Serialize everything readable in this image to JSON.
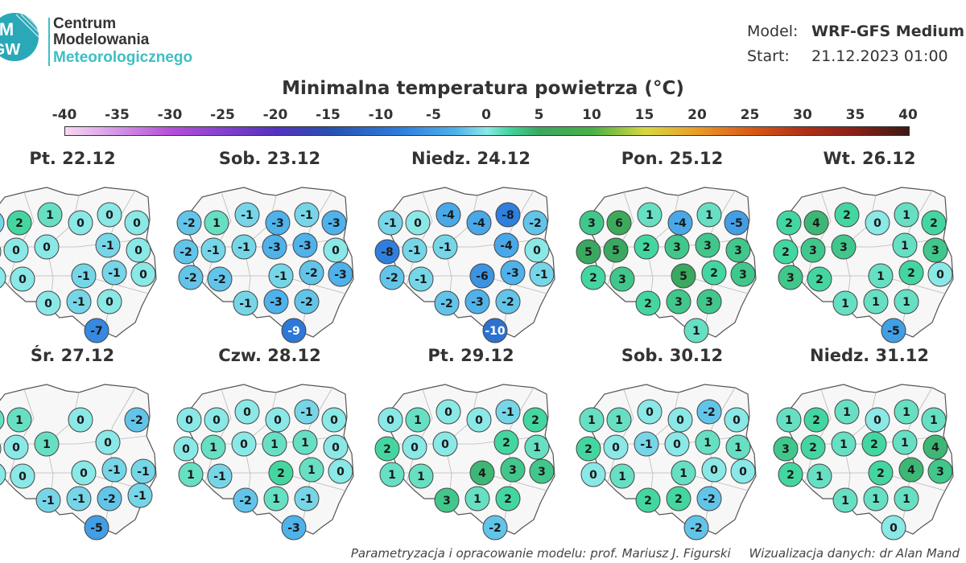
{
  "logo": {
    "line1": "Centrum",
    "line2": "Modelowania",
    "line3": "Meteorologicznego",
    "mark_text": "M GW",
    "colors": {
      "mark": "#2aa8b8",
      "text": "#333333",
      "accent": "#3dbfc4"
    }
  },
  "model_info": {
    "model_label": "Model:",
    "model_value": "WRF-GFS Medium",
    "start_label": "Start:",
    "start_value": "21.12.2023 01:00"
  },
  "title": "Minimalna temperatura powietrza (°C)",
  "colorbar": {
    "ticks": [
      "-40",
      "-35",
      "-30",
      "-25",
      "-20",
      "-15",
      "-10",
      "-5",
      "0",
      "5",
      "10",
      "15",
      "20",
      "25",
      "30",
      "35",
      "40"
    ],
    "range": [
      -40,
      40
    ],
    "stops": [
      {
        "v": -40,
        "c": "#f5d8f2"
      },
      {
        "v": -30,
        "c": "#b450d8"
      },
      {
        "v": -20,
        "c": "#5432c0"
      },
      {
        "v": -15,
        "c": "#2850b0"
      },
      {
        "v": -8,
        "c": "#2f7fdd"
      },
      {
        "v": -3,
        "c": "#4fb2ea"
      },
      {
        "v": 0,
        "c": "#8ae8e6"
      },
      {
        "v": 2,
        "c": "#44d6a0"
      },
      {
        "v": 5,
        "c": "#3aa860"
      },
      {
        "v": 10,
        "c": "#48b048"
      },
      {
        "v": 15,
        "c": "#d8d840"
      },
      {
        "v": 20,
        "c": "#eb9a28"
      },
      {
        "v": 25,
        "c": "#d85a18"
      },
      {
        "v": 30,
        "c": "#b03018"
      },
      {
        "v": 35,
        "c": "#882018"
      },
      {
        "v": 40,
        "c": "#3a1a12"
      }
    ]
  },
  "chart_data": {
    "type": "map",
    "unit": "°C",
    "panels": [
      {
        "label": "Pt. 22.12",
        "values": [
          -1,
          2,
          1,
          0,
          0,
          0,
          0,
          0,
          0,
          -1,
          0,
          0,
          0,
          -1,
          -1,
          0,
          0,
          -1,
          0,
          -7
        ]
      },
      {
        "label": "Sob. 23.12",
        "values": [
          -2,
          1,
          -1,
          -3,
          -1,
          -3,
          -2,
          -1,
          -1,
          -3,
          -3,
          0,
          -2,
          -2,
          -1,
          -2,
          -3,
          -1,
          -3,
          -2,
          -9
        ]
      },
      {
        "label": "Niedz. 24.12",
        "values": [
          -1,
          0,
          -4,
          -4,
          -8,
          -2,
          -8,
          -1,
          -1,
          -4,
          0,
          -2,
          -1,
          -6,
          -3,
          -1,
          -2,
          -3,
          -2,
          -10
        ]
      },
      {
        "label": "Pon. 25.12",
        "values": [
          3,
          6,
          1,
          -4,
          1,
          -5,
          5,
          5,
          2,
          3,
          3,
          3,
          2,
          3,
          5,
          2,
          3,
          2,
          3,
          3,
          1
        ]
      },
      {
        "label": "Wt. 26.12",
        "values": [
          2,
          4,
          2,
          0,
          1,
          2,
          2,
          3,
          3,
          1,
          3,
          3,
          2,
          1,
          2,
          0,
          1,
          1,
          1,
          -5
        ]
      },
      {
        "label": "Śr. 27.12",
        "values": [
          1,
          1,
          0,
          -2,
          0,
          0,
          1,
          0,
          0,
          0,
          0,
          -1,
          -1,
          -1,
          -1,
          -2,
          -1,
          -5
        ]
      },
      {
        "label": "Czw. 28.12",
        "values": [
          0,
          0,
          0,
          0,
          -1,
          0,
          0,
          1,
          0,
          1,
          1,
          0,
          1,
          -1,
          2,
          1,
          0,
          -2,
          1,
          -1,
          -3
        ]
      },
      {
        "label": "Pt. 29.12",
        "values": [
          0,
          1,
          0,
          0,
          -1,
          2,
          2,
          0,
          0,
          2,
          1,
          1,
          1,
          4,
          3,
          3,
          3,
          1,
          2,
          -2
        ]
      },
      {
        "label": "Sob. 30.12",
        "values": [
          1,
          1,
          0,
          0,
          -2,
          0,
          2,
          0,
          -1,
          0,
          1,
          1,
          0,
          1,
          1,
          0,
          0,
          2,
          2,
          -2,
          -2
        ]
      },
      {
        "label": "Niedz. 31.12",
        "values": [
          1,
          2,
          1,
          0,
          1,
          1,
          3,
          2,
          1,
          2,
          1,
          4,
          2,
          1,
          2,
          4,
          3,
          1,
          1,
          1,
          0
        ]
      }
    ]
  },
  "footer": {
    "credit": "Parametryzacja i opracowanie modelu: prof. Mariusz J. Figurski",
    "viz": "Wizualizacja danych: dr Alan Mand"
  }
}
